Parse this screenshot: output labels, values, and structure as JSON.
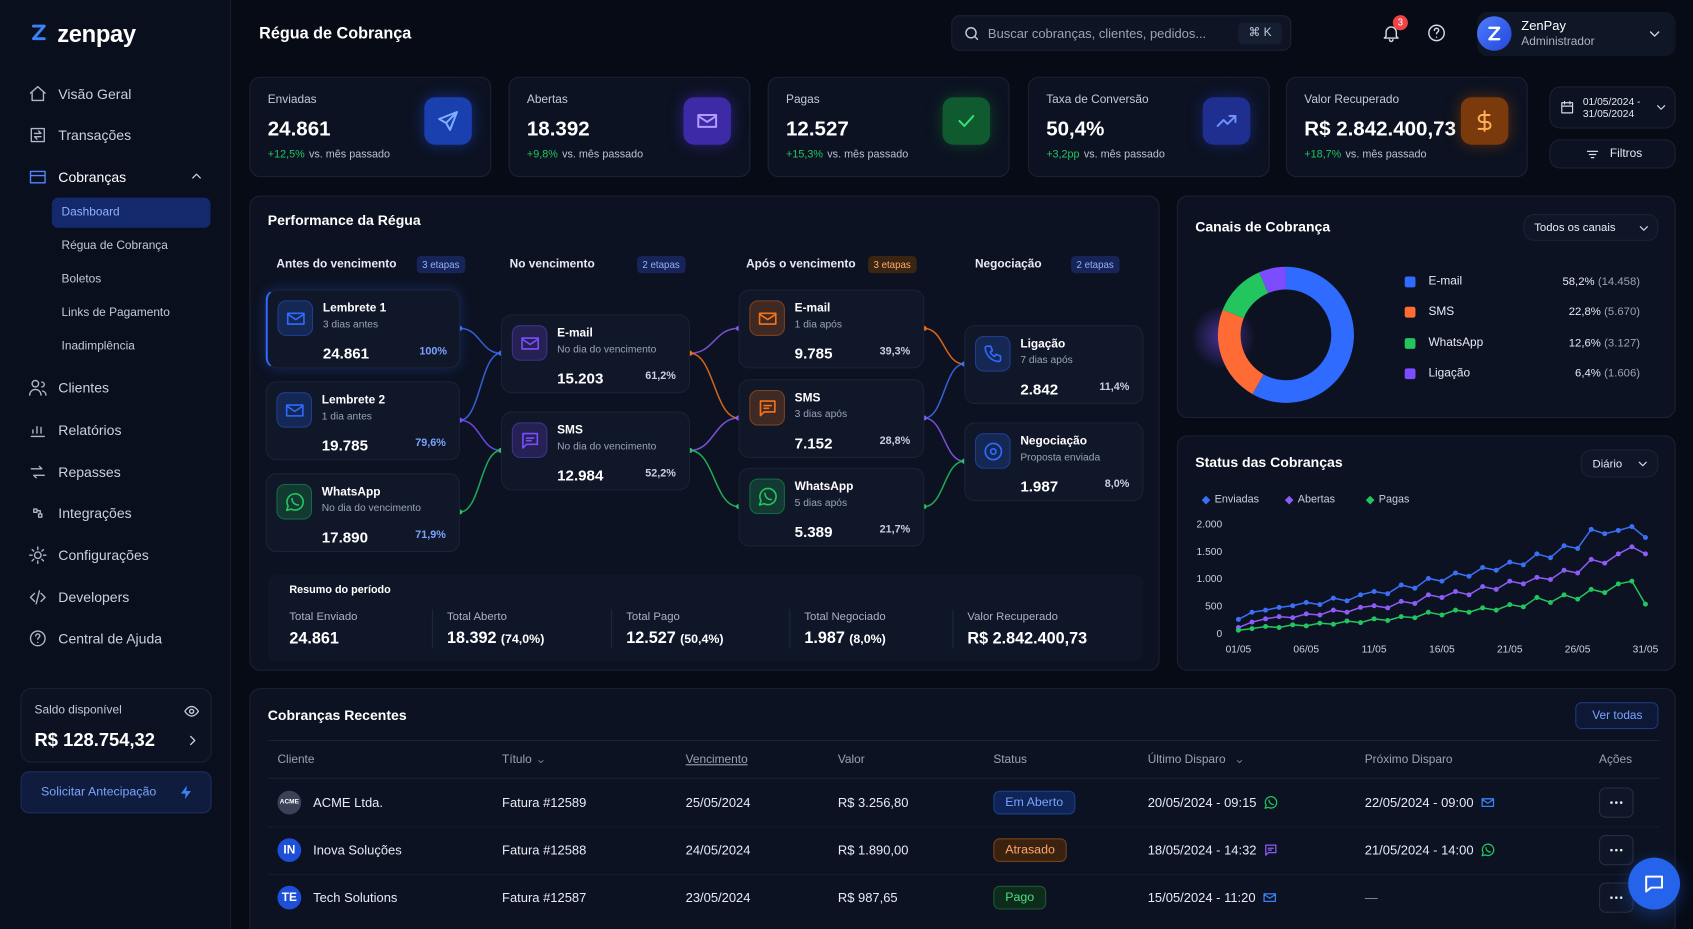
{
  "brand": "zenpay",
  "header": {
    "title": "Régua de Cobrança",
    "search_placeholder": "Buscar cobranças, clientes, pedidos...",
    "shortcut": "⌘ K",
    "notifications": "3",
    "user": {
      "name": "ZenPay",
      "role": "Administrador"
    }
  },
  "sidebar": {
    "nav": [
      "Visão Geral",
      "Transações",
      "Cobranças",
      "Clientes",
      "Relatórios",
      "Repasses",
      "Integrações",
      "Configurações",
      "Developers",
      "Central de Ajuda"
    ],
    "subnav": [
      "Dashboard",
      "Régua de Cobrança",
      "Boletos",
      "Links de Pagamento",
      "Inadimplência"
    ]
  },
  "balance": {
    "label": "Saldo disponível",
    "value": "R$ 128.754,32",
    "action": "Solicitar Antecipação"
  },
  "kpis": [
    {
      "label": "Enviadas",
      "value": "24.861",
      "change": "+12,5%",
      "note": "vs. mês passado"
    },
    {
      "label": "Abertas",
      "value": "18.392",
      "change": "+9,8%",
      "note": "vs. mês passado"
    },
    {
      "label": "Pagas",
      "value": "12.527",
      "change": "+15,3%",
      "note": "vs. mês passado"
    },
    {
      "label": "Taxa de Conversão",
      "value": "50,4%",
      "change": "+3,2pp",
      "note": "vs. mês passado"
    },
    {
      "label": "Valor Recuperado",
      "value": "R$ 2.842.400,73",
      "change": "+18,7%",
      "note": "vs. mês passado"
    }
  ],
  "date_range": [
    "01/05/2024 -",
    "31/05/2024"
  ],
  "filters": "Filtros",
  "performance": {
    "title": "Performance da Régua",
    "stages": [
      {
        "name": "Antes do vencimento",
        "steps": "3 etapas",
        "cards": [
          {
            "channel": "Lembrete 1",
            "timing": "3 dias antes",
            "value": "24.861",
            "rate": "100%"
          },
          {
            "channel": "Lembrete 2",
            "timing": "1 dia antes",
            "value": "19.785",
            "rate": "79,6%"
          },
          {
            "channel": "WhatsApp",
            "timing": "No dia do vencimento",
            "value": "17.890",
            "rate": "71,9%"
          }
        ]
      },
      {
        "name": "No vencimento",
        "steps": "2 etapas",
        "cards": [
          {
            "channel": "E-mail",
            "timing": "No dia do vencimento",
            "value": "15.203",
            "rate": "61,2%"
          },
          {
            "channel": "SMS",
            "timing": "No dia do vencimento",
            "value": "12.984",
            "rate": "52,2%"
          }
        ]
      },
      {
        "name": "Após o vencimento",
        "steps": "3 etapas",
        "cards": [
          {
            "channel": "E-mail",
            "timing": "1 dia após",
            "value": "9.785",
            "rate": "39,3%"
          },
          {
            "channel": "SMS",
            "timing": "3 dias após",
            "value": "7.152",
            "rate": "28,8%"
          },
          {
            "channel": "WhatsApp",
            "timing": "5 dias após",
            "value": "5.389",
            "rate": "21,7%"
          }
        ]
      },
      {
        "name": "Negociação",
        "steps": "2 etapas",
        "cards": [
          {
            "channel": "Ligação",
            "timing": "7 dias após",
            "value": "2.842",
            "rate": "11,4%"
          },
          {
            "channel": "Negociação",
            "timing": "Proposta enviada",
            "value": "1.987",
            "rate": "8,0%"
          }
        ]
      }
    ],
    "summary": {
      "title": "Resumo do período",
      "items": [
        {
          "label": "Total Enviado",
          "value": "24.861"
        },
        {
          "label": "Total Aberto",
          "value": "18.392",
          "pct": "(74,0%)"
        },
        {
          "label": "Total Pago",
          "value": "12.527",
          "pct": "(50,4%)"
        },
        {
          "label": "Total Negociado",
          "value": "1.987",
          "pct": "(8,0%)"
        },
        {
          "label": "Valor Recuperado",
          "value": "R$ 2.842.400,73"
        }
      ]
    }
  },
  "chart_data": [
    {
      "type": "donut",
      "title": "Canais de Cobrança",
      "filter": "Todos os canais",
      "categories": [
        "E-mail",
        "SMS",
        "WhatsApp",
        "Ligação"
      ],
      "values": [
        58.2,
        22.8,
        12.6,
        6.4
      ],
      "value_labels": [
        "58,2%",
        "22,8%",
        "12,6%",
        "6,4%"
      ],
      "counts": [
        "(14.458)",
        "(5.670)",
        "(3.127)",
        "(1.606)"
      ],
      "colors": [
        "#2f6bff",
        "#ff6b35",
        "#22c55e",
        "#7c4dff"
      ]
    },
    {
      "type": "line",
      "title": "Status das Cobranças",
      "filter": "Diário",
      "categories": [
        "01/05",
        null,
        null,
        null,
        null,
        "06/05",
        null,
        null,
        null,
        null,
        "11/05",
        null,
        null,
        null,
        null,
        "16/05",
        null,
        null,
        null,
        null,
        "21/05",
        null,
        null,
        null,
        null,
        "26/05",
        null,
        null,
        null,
        null,
        "31/05"
      ],
      "series": [
        {
          "name": "Enviadas",
          "color": "#3b6ff5",
          "values": [
            250,
            380,
            420,
            470,
            500,
            560,
            520,
            640,
            590,
            700,
            760,
            720,
            880,
            820,
            1000,
            950,
            1100,
            1040,
            1200,
            1150,
            1300,
            1250,
            1450,
            1380,
            1600,
            1550,
            1900,
            1820,
            1880,
            1950,
            1750
          ]
        },
        {
          "name": "Abertas",
          "color": "#8b5cf6",
          "values": [
            100,
            200,
            260,
            300,
            280,
            350,
            330,
            420,
            380,
            470,
            500,
            460,
            580,
            540,
            700,
            650,
            760,
            700,
            850,
            800,
            950,
            900,
            1020,
            980,
            1150,
            1100,
            1350,
            1280,
            1450,
            1580,
            1450
          ]
        },
        {
          "name": "Pagas",
          "color": "#22c55e",
          "values": [
            50,
            80,
            120,
            100,
            150,
            130,
            180,
            160,
            220,
            190,
            260,
            230,
            300,
            280,
            380,
            330,
            420,
            380,
            460,
            420,
            520,
            480,
            650,
            560,
            700,
            620,
            800,
            740,
            900,
            950,
            530
          ]
        }
      ],
      "ylim": [
        0,
        2000
      ],
      "yticks": [
        0,
        500,
        {
          "value": 1000,
          "label": "1.000"
        },
        {
          "value": 1500,
          "label": "1.500"
        },
        {
          "value": 2000,
          "label": "2.000"
        }
      ],
      "grid": false
    }
  ],
  "recent": {
    "title": "Cobranças Recentes",
    "action": "Ver todas",
    "columns": [
      "Cliente",
      "Título",
      "Vencimento",
      "Valor",
      "Status",
      "Último Disparo",
      "Próximo Disparo",
      "Ações"
    ],
    "rows": [
      {
        "avatar": "ACME",
        "client": "ACME Ltda.",
        "title": "Fatura #12589",
        "due": "25/05/2024",
        "amount": "R$ 3.256,80",
        "status": "Em Aberto",
        "last": "20/05/2024 - 09:15",
        "next": "22/05/2024 - 09:00"
      },
      {
        "avatar": "IN",
        "client": "Inova Soluções",
        "title": "Fatura #12588",
        "due": "24/05/2024",
        "amount": "R$ 1.890,00",
        "status": "Atrasado",
        "last": "18/05/2024 - 14:32",
        "next": "21/05/2024 - 14:00"
      },
      {
        "avatar": "TE",
        "client": "Tech Solutions",
        "title": "Fatura #12587",
        "due": "23/05/2024",
        "amount": "R$ 987,65",
        "status": "Pago",
        "last": "15/05/2024 - 11:20",
        "next": "—"
      }
    ]
  }
}
